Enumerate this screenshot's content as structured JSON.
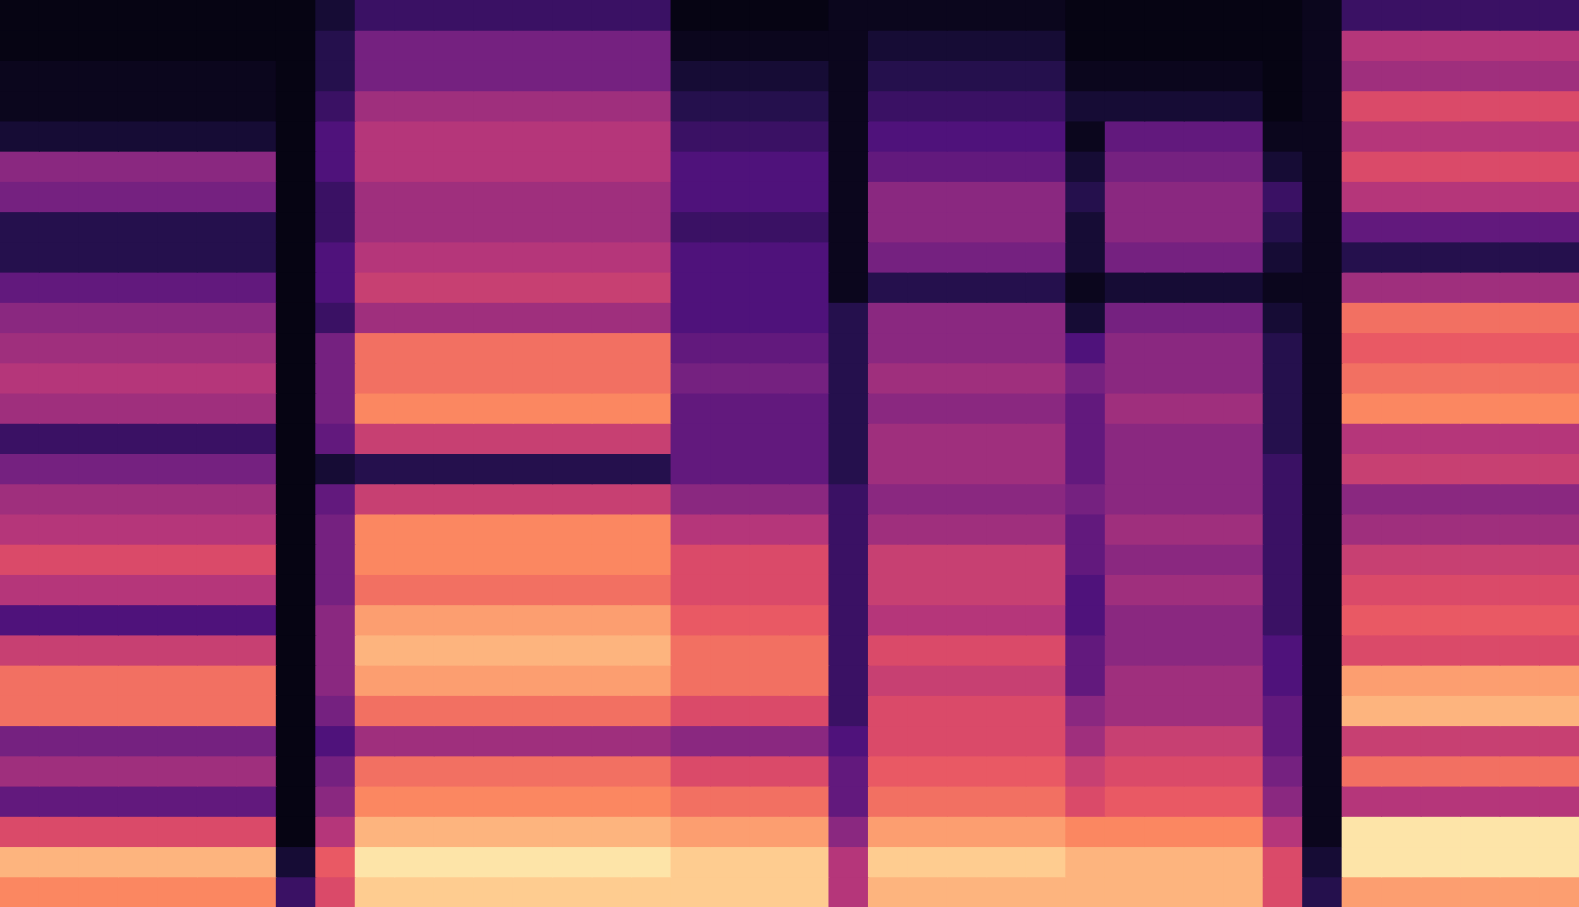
{
  "chart_data": {
    "type": "heatmap",
    "tick_labels": false,
    "cells": [
      [
        0.75,
        0.75,
        0.75,
        0.75,
        0.75,
        0.75,
        0.75,
        0.2,
        0.6,
        0.9,
        0.9,
        0.9,
        0.9,
        0.9,
        0.9,
        0.9,
        0.9,
        0.9,
        0.9,
        0.9,
        0.9,
        0.5,
        0.85,
        0.85,
        0.85,
        0.85,
        0.85,
        0.85,
        0.85,
        0.85,
        0.85,
        0.85,
        0.6,
        0.15,
        0.8,
        0.8,
        0.8,
        0.8,
        0.8,
        0.8
      ],
      [
        0.85,
        0.85,
        0.85,
        0.85,
        0.85,
        0.85,
        0.85,
        0.1,
        0.65,
        0.95,
        0.95,
        0.95,
        0.95,
        0.95,
        0.95,
        0.95,
        0.95,
        0.9,
        0.9,
        0.9,
        0.9,
        0.5,
        0.9,
        0.9,
        0.9,
        0.9,
        0.9,
        0.85,
        0.85,
        0.85,
        0.85,
        0.85,
        0.6,
        0.1,
        0.95,
        0.95,
        0.95,
        0.95,
        0.95,
        0.95
      ],
      [
        0.6,
        0.6,
        0.6,
        0.6,
        0.6,
        0.6,
        0.6,
        0.03,
        0.5,
        0.85,
        0.85,
        0.85,
        0.85,
        0.85,
        0.85,
        0.85,
        0.85,
        0.8,
        0.8,
        0.8,
        0.8,
        0.4,
        0.8,
        0.8,
        0.8,
        0.8,
        0.8,
        0.75,
        0.75,
        0.75,
        0.75,
        0.75,
        0.5,
        0.05,
        0.95,
        0.95,
        0.95,
        0.95,
        0.95,
        0.95
      ],
      [
        0.3,
        0.3,
        0.3,
        0.3,
        0.3,
        0.3,
        0.3,
        0.03,
        0.4,
        0.75,
        0.75,
        0.75,
        0.75,
        0.75,
        0.75,
        0.75,
        0.75,
        0.7,
        0.7,
        0.7,
        0.7,
        0.3,
        0.7,
        0.7,
        0.7,
        0.7,
        0.7,
        0.6,
        0.65,
        0.65,
        0.65,
        0.65,
        0.4,
        0.05,
        0.5,
        0.5,
        0.5,
        0.5,
        0.5,
        0.5
      ],
      [
        0.45,
        0.45,
        0.45,
        0.45,
        0.45,
        0.45,
        0.45,
        0.03,
        0.35,
        0.7,
        0.7,
        0.7,
        0.7,
        0.7,
        0.7,
        0.7,
        0.7,
        0.6,
        0.6,
        0.6,
        0.6,
        0.3,
        0.65,
        0.65,
        0.65,
        0.65,
        0.65,
        0.55,
        0.6,
        0.6,
        0.6,
        0.6,
        0.35,
        0.05,
        0.7,
        0.7,
        0.7,
        0.7,
        0.7,
        0.7
      ],
      [
        0.35,
        0.35,
        0.35,
        0.35,
        0.35,
        0.35,
        0.35,
        0.03,
        0.25,
        0.45,
        0.45,
        0.45,
        0.45,
        0.45,
        0.45,
        0.45,
        0.45,
        0.4,
        0.4,
        0.4,
        0.4,
        0.25,
        0.6,
        0.6,
        0.6,
        0.6,
        0.6,
        0.45,
        0.55,
        0.55,
        0.55,
        0.55,
        0.3,
        0.05,
        0.55,
        0.55,
        0.55,
        0.55,
        0.55,
        0.55
      ],
      [
        0.7,
        0.7,
        0.7,
        0.7,
        0.7,
        0.7,
        0.7,
        0.03,
        0.35,
        0.7,
        0.7,
        0.7,
        0.7,
        0.7,
        0.7,
        0.7,
        0.7,
        0.6,
        0.6,
        0.6,
        0.6,
        0.2,
        0.6,
        0.6,
        0.6,
        0.6,
        0.6,
        0.4,
        0.45,
        0.45,
        0.45,
        0.45,
        0.3,
        0.05,
        0.85,
        0.85,
        0.85,
        0.85,
        0.85,
        0.85
      ],
      [
        0.7,
        0.7,
        0.7,
        0.7,
        0.7,
        0.7,
        0.7,
        0.03,
        0.4,
        0.8,
        0.8,
        0.8,
        0.8,
        0.8,
        0.8,
        0.8,
        0.8,
        0.7,
        0.7,
        0.7,
        0.7,
        0.2,
        0.55,
        0.55,
        0.55,
        0.55,
        0.55,
        0.3,
        0.45,
        0.45,
        0.45,
        0.45,
        0.25,
        0.05,
        0.8,
        0.8,
        0.8,
        0.8,
        0.8,
        0.8
      ],
      [
        0.55,
        0.55,
        0.55,
        0.55,
        0.55,
        0.55,
        0.55,
        0.03,
        0.4,
        0.85,
        0.85,
        0.85,
        0.85,
        0.85,
        0.85,
        0.85,
        0.85,
        0.7,
        0.7,
        0.7,
        0.7,
        0.2,
        0.6,
        0.6,
        0.6,
        0.6,
        0.6,
        0.3,
        0.4,
        0.4,
        0.4,
        0.4,
        0.25,
        0.05,
        0.6,
        0.6,
        0.6,
        0.6,
        0.6,
        0.6
      ],
      [
        0.25,
        0.25,
        0.25,
        0.25,
        0.25,
        0.25,
        0.25,
        0.03,
        0.4,
        0.8,
        0.8,
        0.8,
        0.8,
        0.8,
        0.8,
        0.8,
        0.8,
        0.65,
        0.65,
        0.65,
        0.65,
        0.2,
        0.5,
        0.5,
        0.5,
        0.5,
        0.5,
        0.25,
        0.4,
        0.4,
        0.4,
        0.4,
        0.2,
        0.05,
        0.65,
        0.65,
        0.65,
        0.65,
        0.65,
        0.65
      ],
      [
        0.5,
        0.5,
        0.5,
        0.5,
        0.5,
        0.5,
        0.5,
        0.03,
        0.35,
        0.7,
        0.7,
        0.7,
        0.7,
        0.7,
        0.7,
        0.7,
        0.7,
        0.6,
        0.6,
        0.6,
        0.6,
        0.2,
        0.55,
        0.55,
        0.55,
        0.55,
        0.55,
        0.25,
        0.45,
        0.45,
        0.45,
        0.45,
        0.2,
        0.05,
        0.6,
        0.6,
        0.6,
        0.6,
        0.6,
        0.6
      ],
      [
        0.6,
        0.6,
        0.6,
        0.6,
        0.6,
        0.6,
        0.6,
        0.03,
        0.35,
        0.75,
        0.75,
        0.75,
        0.75,
        0.75,
        0.75,
        0.75,
        0.75,
        0.6,
        0.6,
        0.6,
        0.6,
        0.2,
        0.55,
        0.55,
        0.55,
        0.55,
        0.55,
        0.3,
        0.4,
        0.4,
        0.4,
        0.4,
        0.2,
        0.05,
        0.55,
        0.55,
        0.55,
        0.55,
        0.55,
        0.55
      ],
      [
        0.5,
        0.5,
        0.5,
        0.5,
        0.5,
        0.5,
        0.5,
        0.03,
        0.35,
        0.75,
        0.75,
        0.75,
        0.75,
        0.75,
        0.75,
        0.75,
        0.75,
        0.5,
        0.5,
        0.5,
        0.5,
        0.2,
        0.45,
        0.45,
        0.45,
        0.45,
        0.45,
        0.3,
        0.45,
        0.45,
        0.45,
        0.45,
        0.2,
        0.05,
        0.45,
        0.45,
        0.45,
        0.45,
        0.45,
        0.45
      ],
      [
        0.45,
        0.45,
        0.45,
        0.45,
        0.45,
        0.45,
        0.45,
        0.03,
        0.3,
        0.55,
        0.55,
        0.55,
        0.55,
        0.55,
        0.55,
        0.55,
        0.55,
        0.4,
        0.4,
        0.4,
        0.4,
        0.2,
        0.4,
        0.4,
        0.4,
        0.4,
        0.4,
        0.35,
        0.4,
        0.4,
        0.4,
        0.4,
        0.2,
        0.05,
        0.4,
        0.4,
        0.4,
        0.4,
        0.4,
        0.4
      ],
      [
        0.35,
        0.35,
        0.35,
        0.35,
        0.35,
        0.35,
        0.35,
        0.03,
        0.1,
        0.15,
        0.15,
        0.15,
        0.15,
        0.15,
        0.15,
        0.15,
        0.15,
        0.3,
        0.3,
        0.3,
        0.3,
        0.15,
        0.45,
        0.45,
        0.45,
        0.45,
        0.45,
        0.3,
        0.4,
        0.4,
        0.4,
        0.4,
        0.2,
        0.05,
        0.55,
        0.55,
        0.55,
        0.55,
        0.55,
        0.55
      ],
      [
        0.2,
        0.2,
        0.2,
        0.2,
        0.2,
        0.2,
        0.2,
        0.03,
        0.3,
        0.55,
        0.55,
        0.55,
        0.55,
        0.55,
        0.55,
        0.55,
        0.55,
        0.3,
        0.3,
        0.3,
        0.3,
        0.15,
        0.45,
        0.45,
        0.45,
        0.45,
        0.45,
        0.3,
        0.4,
        0.4,
        0.4,
        0.4,
        0.15,
        0.05,
        0.5,
        0.5,
        0.5,
        0.5,
        0.5,
        0.5
      ],
      [
        0.45,
        0.45,
        0.45,
        0.45,
        0.45,
        0.45,
        0.45,
        0.03,
        0.35,
        0.75,
        0.75,
        0.75,
        0.75,
        0.75,
        0.75,
        0.75,
        0.75,
        0.3,
        0.3,
        0.3,
        0.3,
        0.15,
        0.4,
        0.4,
        0.4,
        0.4,
        0.4,
        0.3,
        0.45,
        0.45,
        0.45,
        0.45,
        0.15,
        0.05,
        0.75,
        0.75,
        0.75,
        0.75,
        0.75,
        0.75
      ],
      [
        0.5,
        0.5,
        0.5,
        0.5,
        0.5,
        0.5,
        0.5,
        0.03,
        0.35,
        0.7,
        0.7,
        0.7,
        0.7,
        0.7,
        0.7,
        0.7,
        0.7,
        0.35,
        0.35,
        0.35,
        0.35,
        0.15,
        0.45,
        0.45,
        0.45,
        0.45,
        0.45,
        0.35,
        0.4,
        0.4,
        0.4,
        0.4,
        0.15,
        0.05,
        0.7,
        0.7,
        0.7,
        0.7,
        0.7,
        0.7
      ],
      [
        0.45,
        0.45,
        0.45,
        0.45,
        0.45,
        0.45,
        0.45,
        0.03,
        0.35,
        0.7,
        0.7,
        0.7,
        0.7,
        0.7,
        0.7,
        0.7,
        0.7,
        0.3,
        0.3,
        0.3,
        0.3,
        0.15,
        0.4,
        0.4,
        0.4,
        0.4,
        0.4,
        0.25,
        0.4,
        0.4,
        0.4,
        0.4,
        0.15,
        0.05,
        0.65,
        0.65,
        0.65,
        0.65,
        0.65,
        0.65
      ],
      [
        0.4,
        0.4,
        0.4,
        0.4,
        0.4,
        0.4,
        0.4,
        0.03,
        0.2,
        0.45,
        0.45,
        0.45,
        0.45,
        0.45,
        0.45,
        0.45,
        0.45,
        0.25,
        0.25,
        0.25,
        0.25,
        0.15,
        0.4,
        0.4,
        0.4,
        0.4,
        0.4,
        0.1,
        0.35,
        0.35,
        0.35,
        0.35,
        0.1,
        0.05,
        0.7,
        0.7,
        0.7,
        0.7,
        0.7,
        0.7
      ],
      [
        0.3,
        0.3,
        0.3,
        0.3,
        0.3,
        0.3,
        0.3,
        0.03,
        0.25,
        0.55,
        0.55,
        0.55,
        0.55,
        0.55,
        0.55,
        0.55,
        0.55,
        0.25,
        0.25,
        0.25,
        0.25,
        0.05,
        0.15,
        0.15,
        0.15,
        0.15,
        0.15,
        0.05,
        0.1,
        0.1,
        0.1,
        0.1,
        0.05,
        0.05,
        0.45,
        0.45,
        0.45,
        0.45,
        0.45,
        0.45
      ],
      [
        0.15,
        0.15,
        0.15,
        0.15,
        0.15,
        0.15,
        0.15,
        0.03,
        0.25,
        0.5,
        0.5,
        0.5,
        0.5,
        0.5,
        0.5,
        0.5,
        0.5,
        0.25,
        0.25,
        0.25,
        0.25,
        0.05,
        0.35,
        0.35,
        0.35,
        0.35,
        0.35,
        0.1,
        0.35,
        0.35,
        0.35,
        0.35,
        0.1,
        0.05,
        0.15,
        0.15,
        0.15,
        0.15,
        0.15,
        0.15
      ],
      [
        0.15,
        0.15,
        0.15,
        0.15,
        0.15,
        0.15,
        0.15,
        0.03,
        0.2,
        0.45,
        0.45,
        0.45,
        0.45,
        0.45,
        0.45,
        0.45,
        0.45,
        0.2,
        0.2,
        0.2,
        0.2,
        0.05,
        0.4,
        0.4,
        0.4,
        0.4,
        0.4,
        0.1,
        0.4,
        0.4,
        0.4,
        0.4,
        0.15,
        0.05,
        0.3,
        0.3,
        0.3,
        0.3,
        0.3,
        0.3
      ],
      [
        0.35,
        0.35,
        0.35,
        0.35,
        0.35,
        0.35,
        0.35,
        0.03,
        0.2,
        0.45,
        0.45,
        0.45,
        0.45,
        0.45,
        0.45,
        0.45,
        0.45,
        0.25,
        0.25,
        0.25,
        0.25,
        0.05,
        0.4,
        0.4,
        0.4,
        0.4,
        0.4,
        0.15,
        0.4,
        0.4,
        0.4,
        0.4,
        0.2,
        0.05,
        0.5,
        0.5,
        0.5,
        0.5,
        0.5,
        0.5
      ],
      [
        0.4,
        0.4,
        0.4,
        0.4,
        0.4,
        0.4,
        0.4,
        0.03,
        0.25,
        0.5,
        0.5,
        0.5,
        0.5,
        0.5,
        0.5,
        0.5,
        0.5,
        0.25,
        0.25,
        0.25,
        0.25,
        0.05,
        0.3,
        0.3,
        0.3,
        0.3,
        0.3,
        0.1,
        0.35,
        0.35,
        0.35,
        0.35,
        0.1,
        0.05,
        0.6,
        0.6,
        0.6,
        0.6,
        0.6,
        0.6
      ],
      [
        0.1,
        0.1,
        0.1,
        0.1,
        0.1,
        0.1,
        0.1,
        0.03,
        0.25,
        0.5,
        0.5,
        0.5,
        0.5,
        0.5,
        0.5,
        0.5,
        0.5,
        0.2,
        0.2,
        0.2,
        0.2,
        0.05,
        0.25,
        0.25,
        0.25,
        0.25,
        0.25,
        0.05,
        0.3,
        0.3,
        0.3,
        0.3,
        0.05,
        0.05,
        0.5,
        0.5,
        0.5,
        0.5,
        0.5,
        0.5
      ],
      [
        0.05,
        0.05,
        0.05,
        0.05,
        0.05,
        0.05,
        0.05,
        0.03,
        0.2,
        0.45,
        0.45,
        0.45,
        0.45,
        0.45,
        0.45,
        0.45,
        0.45,
        0.15,
        0.15,
        0.15,
        0.15,
        0.05,
        0.2,
        0.2,
        0.2,
        0.2,
        0.2,
        0.1,
        0.1,
        0.1,
        0.1,
        0.1,
        0.03,
        0.05,
        0.6,
        0.6,
        0.6,
        0.6,
        0.6,
        0.6
      ],
      [
        0.05,
        0.05,
        0.05,
        0.05,
        0.05,
        0.05,
        0.05,
        0.03,
        0.15,
        0.35,
        0.35,
        0.35,
        0.35,
        0.35,
        0.35,
        0.35,
        0.35,
        0.1,
        0.1,
        0.1,
        0.1,
        0.05,
        0.15,
        0.15,
        0.15,
        0.15,
        0.15,
        0.05,
        0.05,
        0.05,
        0.05,
        0.05,
        0.03,
        0.05,
        0.45,
        0.45,
        0.45,
        0.45,
        0.45,
        0.45
      ],
      [
        0.03,
        0.03,
        0.03,
        0.03,
        0.03,
        0.03,
        0.03,
        0.03,
        0.15,
        0.35,
        0.35,
        0.35,
        0.35,
        0.35,
        0.35,
        0.35,
        0.35,
        0.05,
        0.05,
        0.05,
        0.05,
        0.05,
        0.1,
        0.1,
        0.1,
        0.1,
        0.1,
        0.03,
        0.03,
        0.03,
        0.03,
        0.03,
        0.03,
        0.05,
        0.5,
        0.5,
        0.5,
        0.5,
        0.5,
        0.5
      ],
      [
        0.03,
        0.03,
        0.03,
        0.03,
        0.03,
        0.03,
        0.03,
        0.03,
        0.1,
        0.2,
        0.2,
        0.2,
        0.2,
        0.2,
        0.2,
        0.2,
        0.2,
        0.03,
        0.03,
        0.03,
        0.03,
        0.05,
        0.05,
        0.05,
        0.05,
        0.05,
        0.05,
        0.03,
        0.03,
        0.03,
        0.03,
        0.03,
        0.03,
        0.05,
        0.2,
        0.2,
        0.2,
        0.2,
        0.2,
        0.2
      ]
    ]
  }
}
